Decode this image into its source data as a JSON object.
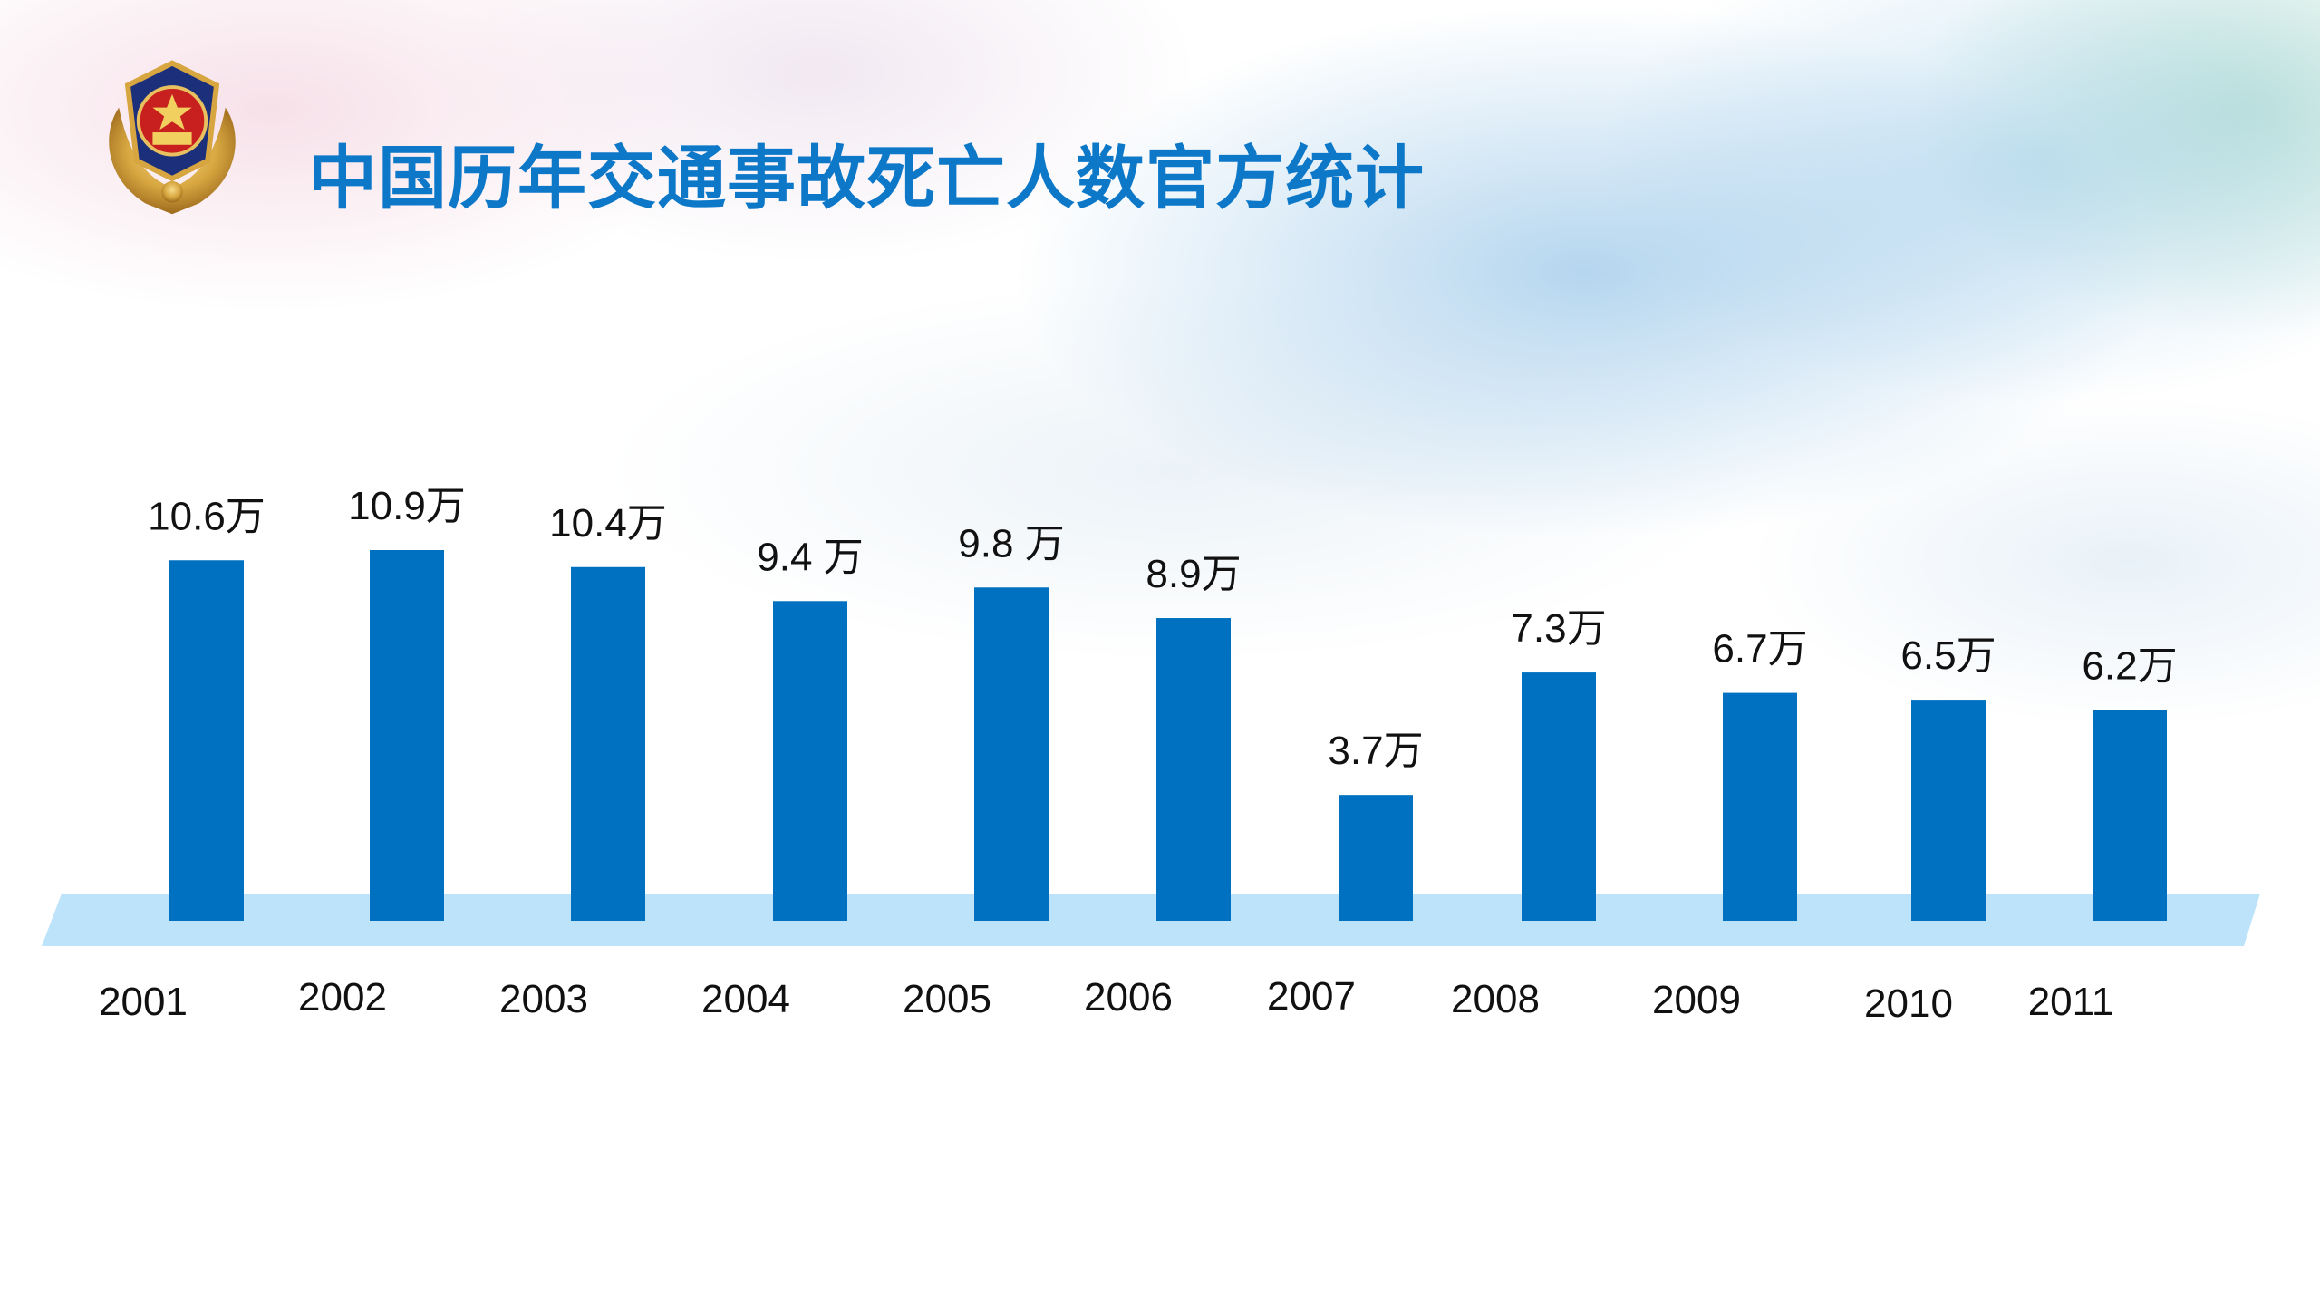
{
  "slide": {
    "title": "中国历年交通事故死亡人数官方统计",
    "emblem_icon": "police-emblem-icon",
    "colors": {
      "title": "#0e78c8",
      "bar": "#0070c0",
      "baseline_band": "#bde3fb"
    }
  },
  "chart_data": {
    "type": "bar",
    "title": "中国历年交通事故死亡人数官方统计",
    "categories": [
      "2001",
      "2002",
      "2003",
      "2004",
      "2005",
      "2006",
      "2007",
      "2008",
      "2009",
      "2010",
      "2011"
    ],
    "values": [
      10.6,
      10.9,
      10.4,
      9.4,
      9.8,
      8.9,
      3.7,
      7.3,
      6.7,
      6.5,
      6.2
    ],
    "data_labels": [
      "10.6万",
      "10.9万",
      "10.4万",
      "9.4 万",
      "9.8 万",
      "8.9万",
      "3.7万",
      "7.3万",
      "6.7万",
      "6.5万",
      "6.2万"
    ],
    "unit": "万",
    "xlabel": "",
    "ylabel": "",
    "grid": false,
    "legend": "none"
  }
}
